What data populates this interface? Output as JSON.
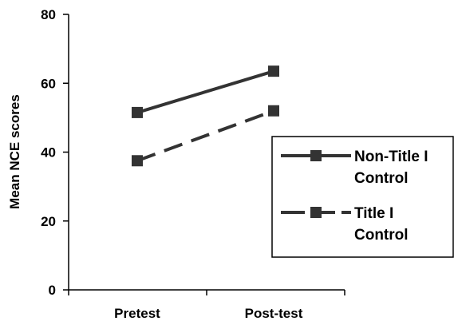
{
  "chart_data": {
    "type": "line",
    "title": "",
    "xlabel": "",
    "ylabel": "Mean NCE scores",
    "categories": [
      "Pretest",
      "Post-test"
    ],
    "ylim": [
      0,
      80
    ],
    "yticks": [
      "0",
      "20",
      "40",
      "60",
      "80"
    ],
    "grid": false,
    "legend_position": "right",
    "series": [
      {
        "name_lines": [
          "Non-Title I",
          "Control"
        ],
        "values": [
          51.5,
          63.5
        ],
        "line_style": "solid",
        "marker": "square",
        "color": "#333333"
      },
      {
        "name_lines": [
          "Title I",
          "Control"
        ],
        "values": [
          37.5,
          52
        ],
        "line_style": "dashed",
        "marker": "square",
        "color": "#333333"
      }
    ]
  }
}
